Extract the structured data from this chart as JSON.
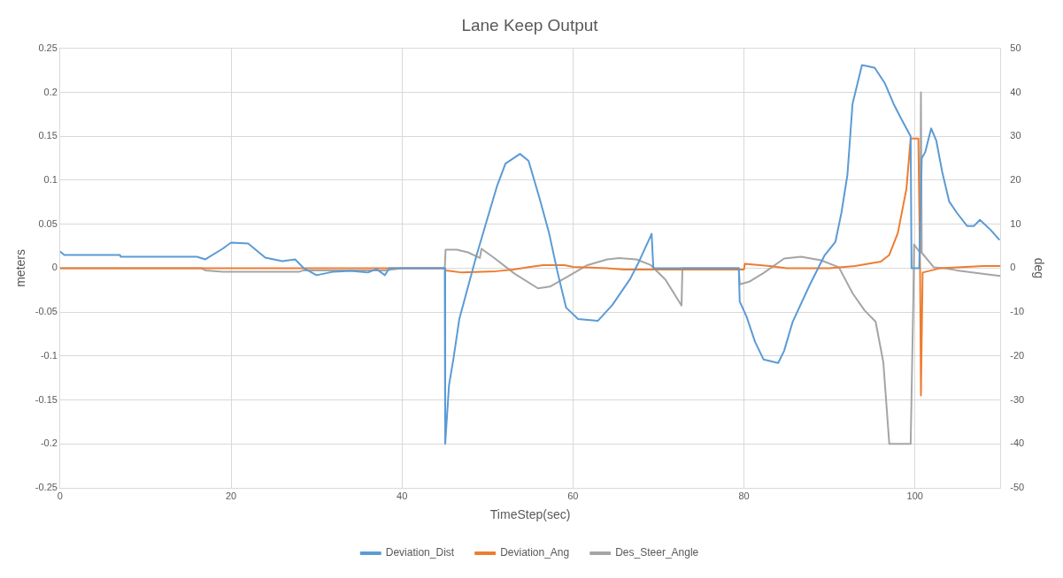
{
  "chart_data": {
    "type": "line",
    "title": "Lane Keep Output",
    "xlabel": "TimeStep(sec)",
    "ylabel": "meters",
    "y2label": "deg",
    "xlim": [
      0,
      110
    ],
    "xticks": [
      0,
      20,
      40,
      60,
      80,
      100
    ],
    "ylim": [
      -0.25,
      0.25
    ],
    "yticks": [
      -0.25,
      -0.2,
      -0.15,
      -0.1,
      -0.05,
      0,
      0.05,
      0.1,
      0.15,
      0.2,
      0.25
    ],
    "y2lim": [
      -50,
      50
    ],
    "y2ticks": [
      -50,
      -40,
      -30,
      -20,
      -10,
      0,
      10,
      20,
      30,
      40,
      50
    ],
    "grid": true,
    "legend": "bottom",
    "marker": "none",
    "line_style": "solid",
    "series": [
      {
        "name": "Deviation_Dist",
        "color": "#5b9bd5",
        "x": [
          0,
          0.5,
          7,
          7.1,
          16,
          17,
          19,
          20,
          22,
          24,
          26,
          27.5,
          28.5,
          30,
          32,
          34,
          36,
          37,
          38,
          38.5,
          45,
          45.05,
          45.5,
          46,
          46.7,
          47.7,
          48.7,
          49.7,
          51.1,
          52.1,
          53.8,
          54.8,
          56.1,
          57.2,
          58.2,
          59.2,
          60.6,
          62.9,
          64.6,
          66.7,
          67.7,
          69.2,
          69.4,
          79.4,
          79.5,
          80.3,
          81.3,
          82.3,
          84,
          84.7,
          85.7,
          87.7,
          89.4,
          90.7,
          91.4,
          92.1,
          92.7,
          93.8,
          94.4,
          95.3,
          96.5,
          97.5,
          98.5,
          99.5,
          99.6,
          100.5,
          100.8,
          101.2,
          101.9,
          102.5,
          103.2,
          104,
          104.9,
          106.1,
          106.9,
          107.6,
          108.9,
          109.9
        ],
        "values": [
          0.019,
          0.015,
          0.015,
          0.013,
          0.013,
          0.01,
          0.022,
          0.029,
          0.028,
          0.012,
          0.008,
          0.01,
          0,
          -0.008,
          -0.004,
          -0.003,
          -0.005,
          -0.001,
          -0.008,
          0,
          0,
          -0.2,
          -0.133,
          -0.104,
          -0.058,
          -0.022,
          0.014,
          0.047,
          0.093,
          0.119,
          0.13,
          0.122,
          0.079,
          0.04,
          -0.005,
          -0.045,
          -0.058,
          -0.06,
          -0.042,
          -0.012,
          0.007,
          0.039,
          0,
          0,
          -0.038,
          -0.055,
          -0.084,
          -0.104,
          -0.108,
          -0.094,
          -0.061,
          -0.019,
          0.014,
          0.03,
          0.063,
          0.106,
          0.187,
          0.231,
          0.23,
          0.228,
          0.21,
          0.187,
          0.168,
          0.15,
          0,
          0,
          0.125,
          0.132,
          0.159,
          0.145,
          0.109,
          0.076,
          0.063,
          0.048,
          0.048,
          0.055,
          0.043,
          0.032
        ]
      },
      {
        "name": "Deviation_Ang",
        "color": "#ed7d31",
        "axis": "y2",
        "x": [
          0,
          45,
          45.1,
          47,
          51,
          53,
          55,
          56.5,
          59,
          60,
          64,
          66,
          80,
          80.1,
          83,
          85,
          90,
          93,
          96,
          97,
          98,
          99,
          99.5,
          100.4,
          100.6,
          100.7,
          100.9,
          103,
          108,
          110
        ],
        "values": [
          0,
          0,
          -0.5,
          -1,
          -0.7,
          -0.3,
          0.3,
          0.7,
          0.7,
          0.3,
          0,
          -0.3,
          -0.3,
          1,
          0.5,
          0,
          0,
          0.5,
          1.5,
          3,
          8,
          18,
          29.5,
          29.5,
          0,
          -29,
          -1,
          0,
          0.5,
          0.5
        ]
      },
      {
        "name": "Des_Steer_Angle",
        "color": "#a5a5a5",
        "axis": "y2",
        "x": [
          0,
          16.5,
          17,
          19,
          28,
          28.5,
          38,
          40,
          45,
          45.1,
          46.4,
          47.7,
          49.1,
          49.3,
          50.8,
          53.2,
          55.9,
          57.3,
          59.3,
          61.7,
          64,
          65.4,
          67.4,
          69.1,
          70.8,
          72.7,
          72.8,
          79.4,
          79.5,
          80.6,
          82.3,
          84.7,
          86.7,
          89,
          91.1,
          92.7,
          94.1,
          95.4,
          96.3,
          97,
          99.5,
          99.8,
          99.9,
          100.6,
          100.7,
          100.8,
          102.2,
          103.5,
          104.9,
          108.3,
          110
        ],
        "values": [
          0,
          0,
          -0.5,
          -0.8,
          -0.8,
          -0.5,
          -0.5,
          0,
          0,
          4.2,
          4.2,
          3.6,
          2.3,
          4.4,
          2.3,
          -1.3,
          -4.6,
          -4.2,
          -2,
          0.7,
          2,
          2.3,
          2,
          0.7,
          -2.6,
          -8.5,
          0,
          0,
          -3.7,
          -3.1,
          -1.1,
          2.2,
          2.6,
          1.8,
          0.2,
          -5.7,
          -9.6,
          -12.2,
          -21.4,
          -40,
          -40,
          -8.3,
          5.4,
          3.5,
          40,
          3.5,
          0.2,
          0,
          -0.5,
          -1.4,
          -1.8
        ]
      }
    ]
  }
}
